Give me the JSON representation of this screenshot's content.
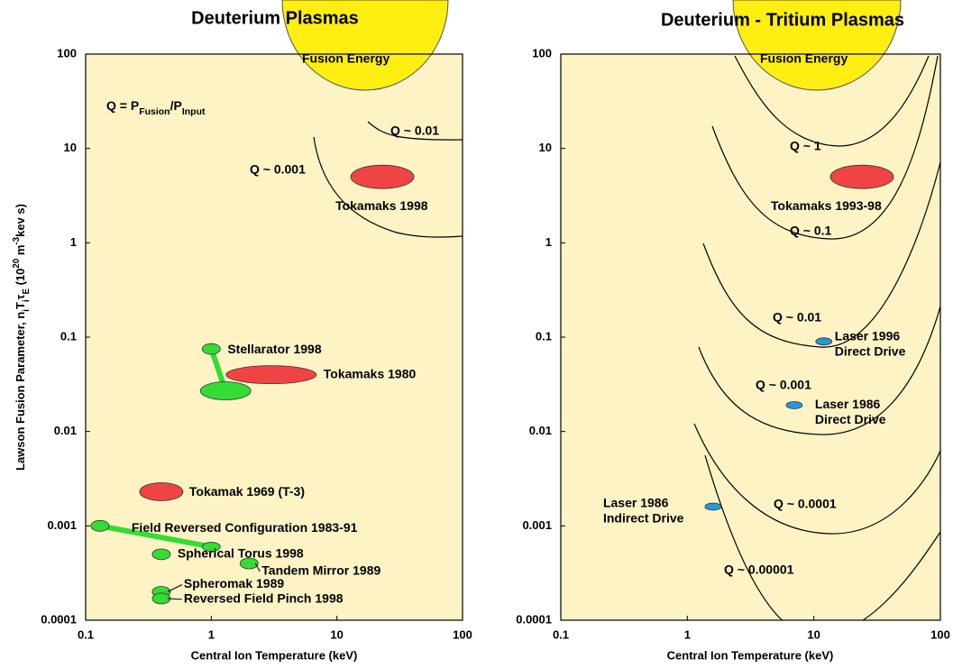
{
  "chart_data": [
    {
      "type": "scatter",
      "title": "Deuterium Plasmas",
      "x_label": "Central Ion Temperature (keV)",
      "y_label": [
        "Lawson Fusion Parameter, n",
        "i",
        "T",
        "i",
        "τ",
        "E",
        " (10",
        "20",
        " m",
        "-3",
        "kev s)"
      ],
      "formula": [
        "Q = P",
        "Fusion",
        "/P",
        "Input"
      ],
      "xlog": true,
      "ylog": true,
      "xlim": [
        0.1,
        100
      ],
      "ylim": [
        0.0001,
        100
      ],
      "xticks": [
        0.1,
        1,
        10,
        100
      ],
      "yticks": [
        0.0001,
        0.001,
        0.01,
        0.1,
        1,
        10,
        100
      ],
      "annotations": [
        "Fusion Energy",
        "Q ~ 0.01",
        "Q ~ 0.001"
      ],
      "points": [
        {
          "label": "Tokamaks 1998",
          "x": 23,
          "y": 5,
          "color": "#f04444"
        },
        {
          "label": "Tokamaks 1980",
          "x": 3,
          "y": 0.04,
          "color": "#f04444"
        },
        {
          "label": "Stellarator 1998",
          "x": 1,
          "y": 0.075,
          "color": "#33dd33"
        },
        {
          "label": null,
          "x": 1.3,
          "y": 0.027,
          "color": "#33dd33"
        },
        {
          "label": "Tokamak 1969 (T-3)",
          "x": 0.4,
          "y": 0.0023,
          "color": "#f04444"
        },
        {
          "label": "Field Reversed Configuration 1983-91",
          "x": 0.13,
          "y": 0.001,
          "color": "#33dd33"
        },
        {
          "label": null,
          "x": 1,
          "y": 0.0006,
          "color": "#33dd33"
        },
        {
          "label": "Spherical Torus 1998",
          "x": 0.4,
          "y": 0.0005,
          "color": "#33dd33"
        },
        {
          "label": "Tandem Mirror 1989",
          "x": 2,
          "y": 0.0004,
          "color": "#33dd33"
        },
        {
          "label": "Spheromak 1989",
          "x": 0.4,
          "y": 0.0002,
          "color": "#33dd33"
        },
        {
          "label": "Reversed Field Pinch 1998",
          "x": 0.4,
          "y": 0.00017,
          "color": "#33dd33"
        }
      ]
    },
    {
      "type": "scatter",
      "title": "Deuterium - Tritium Plasmas",
      "x_label": "Central Ion Temperature (keV)",
      "xlog": true,
      "ylog": true,
      "xlim": [
        0.1,
        100
      ],
      "ylim": [
        0.0001,
        100
      ],
      "xticks": [
        0.1,
        1,
        10,
        100
      ],
      "yticks": [
        0.0001,
        0.001,
        0.01,
        0.1,
        1,
        10,
        100
      ],
      "annotations": [
        "Fusion Energy",
        "Q ~ 1",
        "Q ~ 0.1",
        "Q ~ 0.01",
        "Q ~ 0.001",
        "Q ~ 0.0001",
        "Q ~ 0.00001"
      ],
      "points": [
        {
          "label": "Tokamaks 1993-98",
          "x": 24,
          "y": 5,
          "color": "#f04444"
        },
        {
          "label": [
            "Laser 1996",
            "Direct Drive"
          ],
          "x": 12,
          "y": 0.09,
          "color": "#2299dd"
        },
        {
          "label": [
            "Laser 1986",
            "Direct Drive"
          ],
          "x": 7,
          "y": 0.019,
          "color": "#2299dd"
        },
        {
          "label": [
            "Laser 1986",
            "Indirect Drive"
          ],
          "x": 1.6,
          "y": 0.0016,
          "color": "#2299dd"
        }
      ]
    }
  ]
}
